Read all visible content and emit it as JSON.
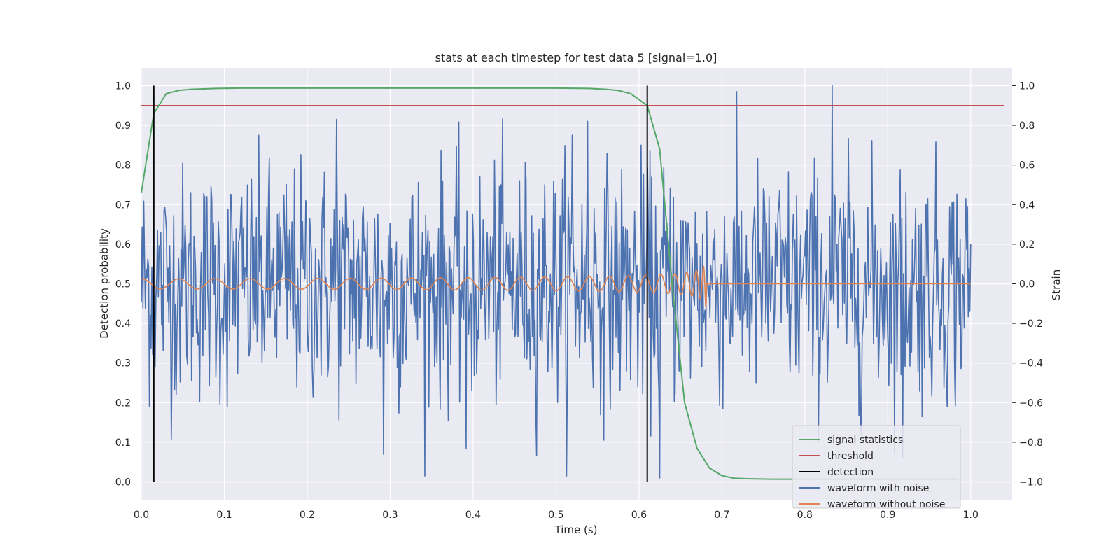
{
  "chart_data": {
    "type": "line",
    "title": "stats at each timestep for test data 5 [signal=1.0]",
    "xlabel": "Time (s)",
    "ylabel": "Detection probability",
    "ylabel_right": "Strain",
    "xlim": [
      0.0,
      1.05
    ],
    "ylim": [
      -0.045,
      1.045
    ],
    "ylim_right": [
      -1.09,
      1.09
    ],
    "grid": true,
    "x_ticks": [
      0.0,
      0.1,
      0.2,
      0.3,
      0.4,
      0.5,
      0.6,
      0.7,
      0.8,
      0.9,
      1.0
    ],
    "x_tick_labels": [
      "0.0",
      "0.1",
      "0.2",
      "0.3",
      "0.4",
      "0.5",
      "0.6",
      "0.7",
      "0.8",
      "0.9",
      "1.0"
    ],
    "y_ticks": [
      0.0,
      0.1,
      0.2,
      0.3,
      0.4,
      0.5,
      0.6,
      0.7,
      0.8,
      0.9,
      1.0
    ],
    "y_tick_labels": [
      "0.0",
      "0.1",
      "0.2",
      "0.3",
      "0.4",
      "0.5",
      "0.6",
      "0.7",
      "0.8",
      "0.9",
      "1.0"
    ],
    "y_right_ticks": [
      -1.0,
      -0.8,
      -0.6,
      -0.4,
      -0.2,
      0.0,
      0.2,
      0.4,
      0.6,
      0.8,
      1.0
    ],
    "y_right_tick_labels": [
      "−1.0",
      "−0.8",
      "−0.6",
      "−0.4",
      "−0.2",
      "0.0",
      "0.2",
      "0.4",
      "0.6",
      "0.8",
      "1.0"
    ],
    "legend_position": "lower-right",
    "series": [
      {
        "name": "signal statistics",
        "axis": "left",
        "color": "#55a868",
        "x": [
          0.0,
          0.015,
          0.03,
          0.045,
          0.06,
          0.075,
          0.09,
          0.12,
          0.2,
          0.3,
          0.4,
          0.5,
          0.54,
          0.56,
          0.575,
          0.59,
          0.61,
          0.625,
          0.64,
          0.655,
          0.67,
          0.685,
          0.7,
          0.715,
          0.73,
          0.76,
          0.8,
          0.9,
          0.985
        ],
        "y": [
          0.73,
          0.93,
          0.98,
          0.988,
          0.991,
          0.992,
          0.993,
          0.994,
          0.994,
          0.994,
          0.994,
          0.994,
          0.993,
          0.991,
          0.988,
          0.98,
          0.95,
          0.84,
          0.5,
          0.2,
          0.085,
          0.035,
          0.016,
          0.009,
          0.008,
          0.007,
          0.007,
          0.007,
          0.007
        ]
      },
      {
        "name": "threshold",
        "axis": "left",
        "color": "#c44e52",
        "x": [
          0.0,
          1.04
        ],
        "y": [
          0.95,
          0.95
        ]
      },
      {
        "name": "detection",
        "axis": "left",
        "color": "#000000",
        "segments": [
          {
            "x": 0.015,
            "y": [
              0.0,
              1.0
            ]
          },
          {
            "x": 0.61,
            "y": [
              0.0,
              1.0
            ]
          }
        ]
      },
      {
        "name": "waveform with noise",
        "axis": "right",
        "color": "#4c72b0",
        "generator": "noise",
        "x_range": [
          0.0,
          1.0
        ],
        "amplitude_std": 0.3,
        "peaks": [
          {
            "x": 0.833,
            "y": 1.0
          },
          {
            "x": 0.625,
            "y": -0.98
          },
          {
            "x": 0.918,
            "y": -0.88
          },
          {
            "x": 0.235,
            "y": 0.83
          },
          {
            "x": 0.52,
            "y": 0.75
          },
          {
            "x": 0.538,
            "y": 0.82
          },
          {
            "x": 0.292,
            "y": -0.86
          },
          {
            "x": 0.392,
            "y": -0.83
          }
        ]
      },
      {
        "name": "waveform without noise",
        "axis": "right",
        "color": "#dd8452",
        "generator": "chirp",
        "x_range": [
          0.0,
          1.0
        ],
        "merger_time": 0.682,
        "start_amplitude": 0.025,
        "peak_amplitude": 0.13,
        "start_frequency_hz": 22
      }
    ]
  }
}
